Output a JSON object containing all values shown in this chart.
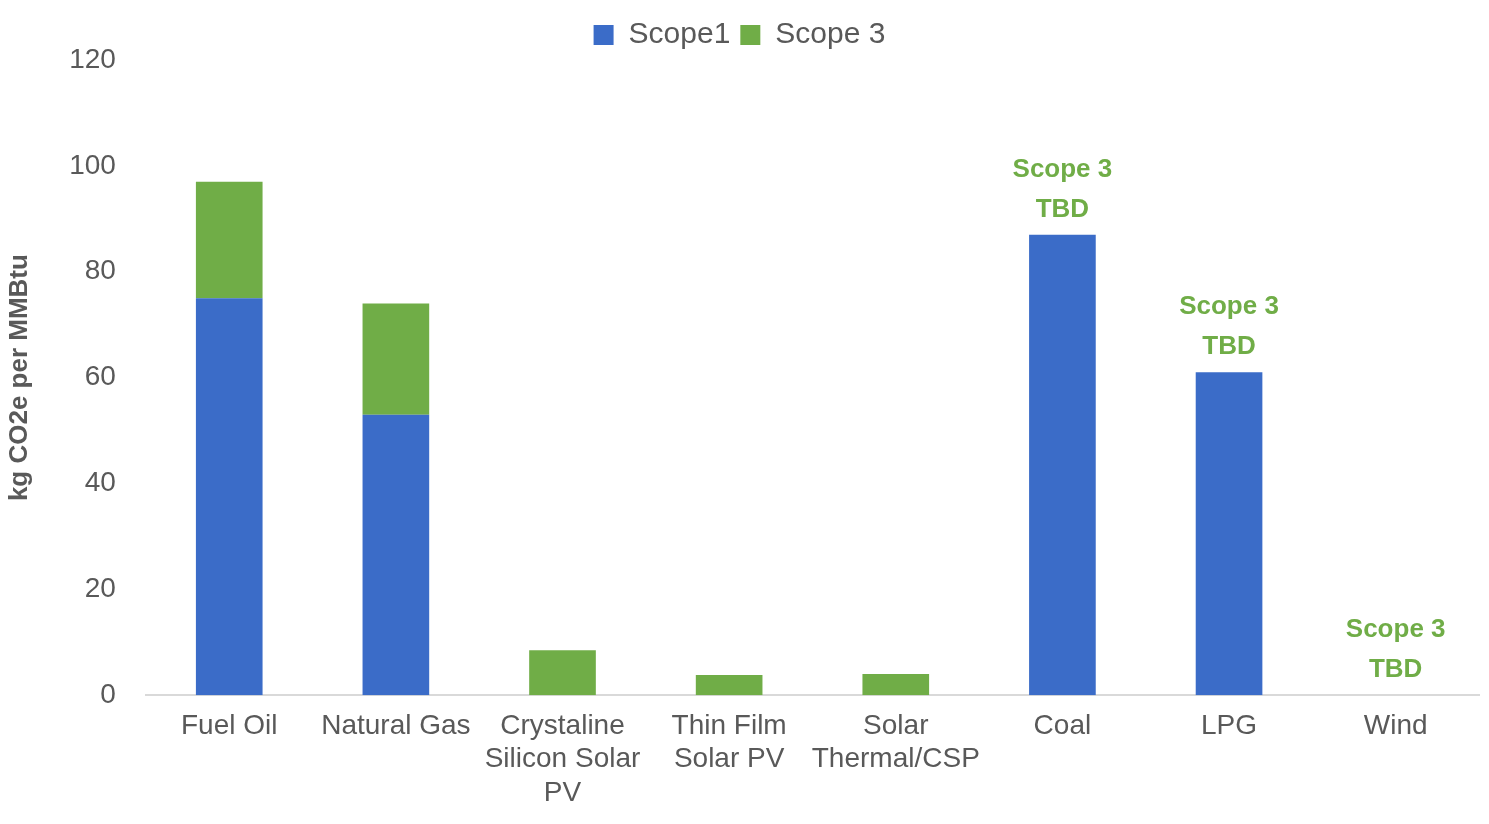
{
  "chart_data": {
    "type": "bar",
    "stacked": true,
    "ylabel": "kg CO2e per MMBtu",
    "categories": [
      "Fuel Oil",
      "Natural Gas",
      "Crystaline Silicon Solar PV",
      "Thin Film Solar PV",
      "Solar Thermal/CSP",
      "Coal",
      "LPG",
      "Wind"
    ],
    "series": [
      {
        "name": "Scope1",
        "color": "#3b6cc8",
        "values": [
          75,
          53,
          null,
          null,
          null,
          87,
          61,
          0
        ]
      },
      {
        "name": "Scope 3",
        "color": "#70ad47",
        "values": [
          22,
          21,
          8.5,
          3.8,
          4,
          null,
          null,
          null
        ]
      }
    ],
    "ylim": [
      0,
      120
    ],
    "yticks": [
      0,
      20,
      40,
      60,
      80,
      100,
      120
    ],
    "grid": false,
    "legend": "top",
    "annotations": [
      {
        "text": "Scope 3\nTBD",
        "x": "Coal",
        "y": 87
      },
      {
        "text": "Scope 3\nTBD",
        "x": "LPG",
        "y": 61
      },
      {
        "text": "Scope 3\nTBD",
        "x": "Wind",
        "y": 0
      }
    ]
  }
}
